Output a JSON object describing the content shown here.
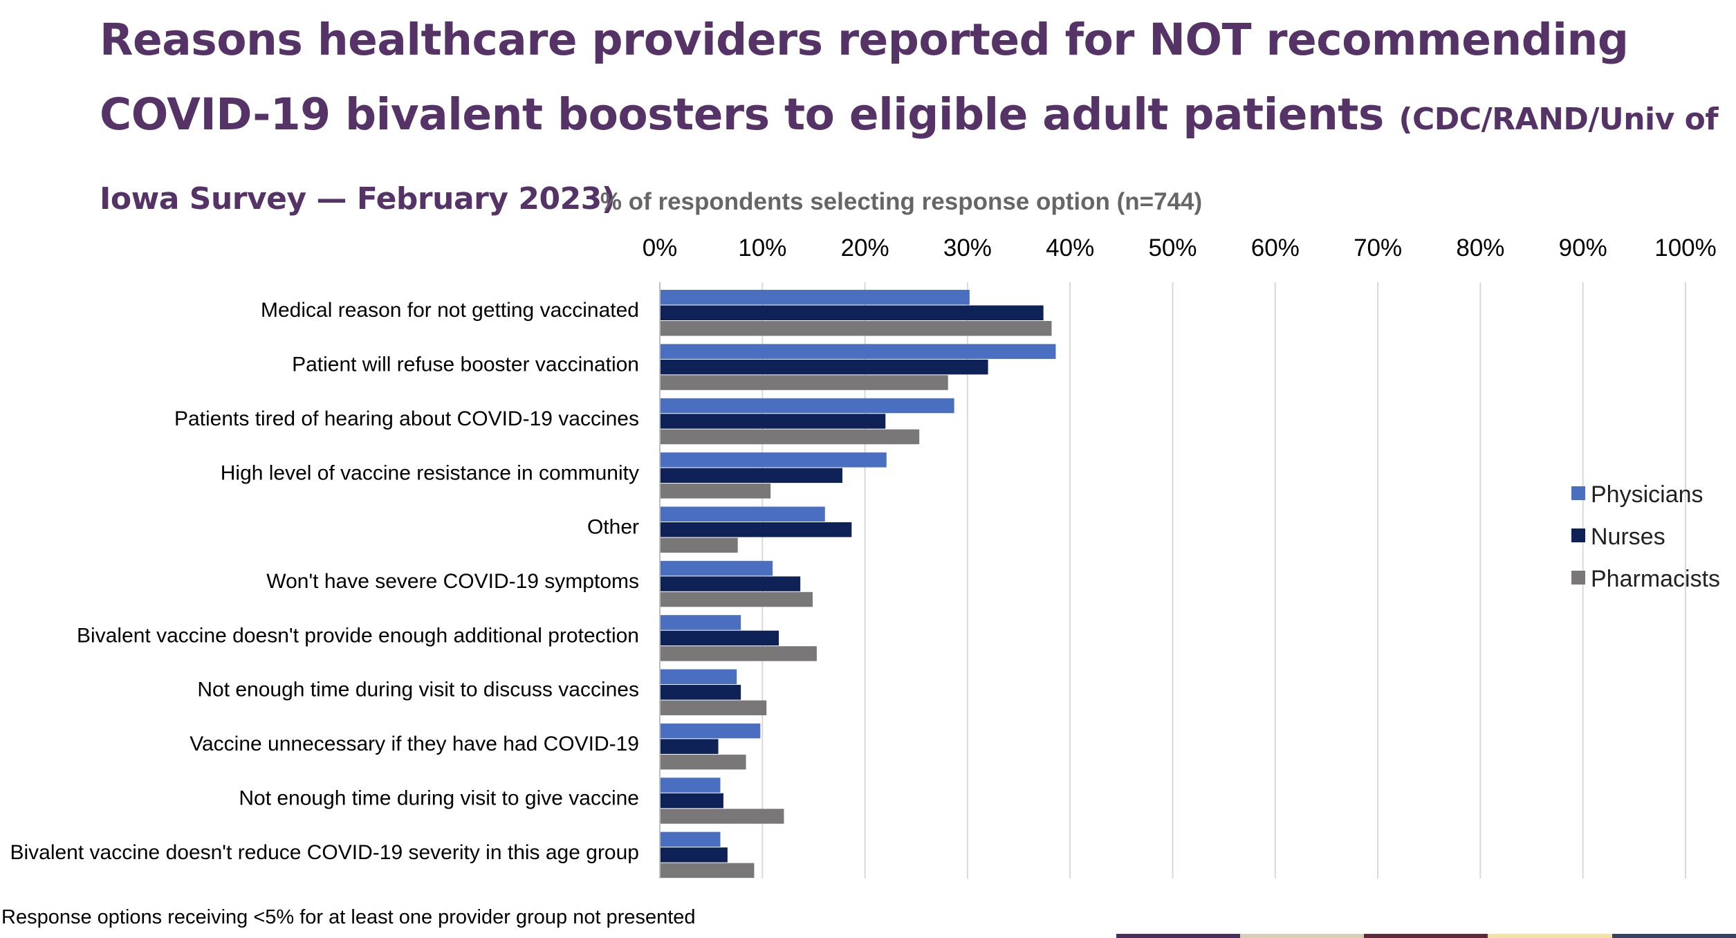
{
  "page": {
    "title": "Reasons healthcare providers reported for NOT recommending COVID-19 bivalent boosters to eligible adult patients",
    "subtitle": "(CDC/RAND/Univ of Iowa Survey — February 2023)",
    "footnote": "Response options receiving <5% for at least one provider group not presented",
    "strip_colors": [
      "#ffffff",
      "#ffffff",
      "#ffffff",
      "#ffffff",
      "#ffffff",
      "#ffffff",
      "#ffffff",
      "#ffffff",
      "#ffffff",
      "#4a2f5c",
      "#d8cfb8",
      "#5c2a3a",
      "#f2e2a8",
      "#3a4060"
    ]
  },
  "chart_data": {
    "type": "bar",
    "orientation": "horizontal",
    "title": "",
    "xlabel": "% of respondents selecting response option (n=744)",
    "ylabel": "",
    "xlim": [
      0,
      100
    ],
    "x_ticks": [
      "0%",
      "10%",
      "20%",
      "30%",
      "40%",
      "50%",
      "60%",
      "70%",
      "80%",
      "90%",
      "100%"
    ],
    "grid": "vertical",
    "legend_position": "right",
    "categories": [
      "Medical reason for not getting vaccinated",
      "Patient will refuse booster vaccination",
      "Patients tired of hearing about COVID-19 vaccines",
      "High level of vaccine resistance in community",
      "Other",
      "Won't have severe COVID-19 symptoms",
      "Bivalent vaccine doesn't provide enough additional protection",
      "Not enough time during visit to discuss vaccines",
      "Vaccine unnecessary if they have had COVID-19",
      "Not enough time during visit to give vaccine",
      "Bivalent vaccine doesn't reduce COVID-19 severity in this age group"
    ],
    "series": [
      {
        "name": "Physicians",
        "color": "#4a6fc0",
        "values": [
          30.2,
          38.6,
          28.7,
          22.1,
          16.1,
          11.0,
          7.9,
          7.5,
          9.8,
          5.9,
          5.9
        ]
      },
      {
        "name": "Nurses",
        "color": "#0f2257",
        "values": [
          37.4,
          32.0,
          22.0,
          17.8,
          18.7,
          13.7,
          11.6,
          7.9,
          5.7,
          6.2,
          6.6
        ]
      },
      {
        "name": "Pharmacists",
        "color": "#7a7779",
        "values": [
          38.2,
          28.1,
          25.3,
          10.8,
          7.6,
          14.9,
          15.3,
          10.4,
          8.4,
          12.1,
          9.2
        ]
      }
    ]
  }
}
